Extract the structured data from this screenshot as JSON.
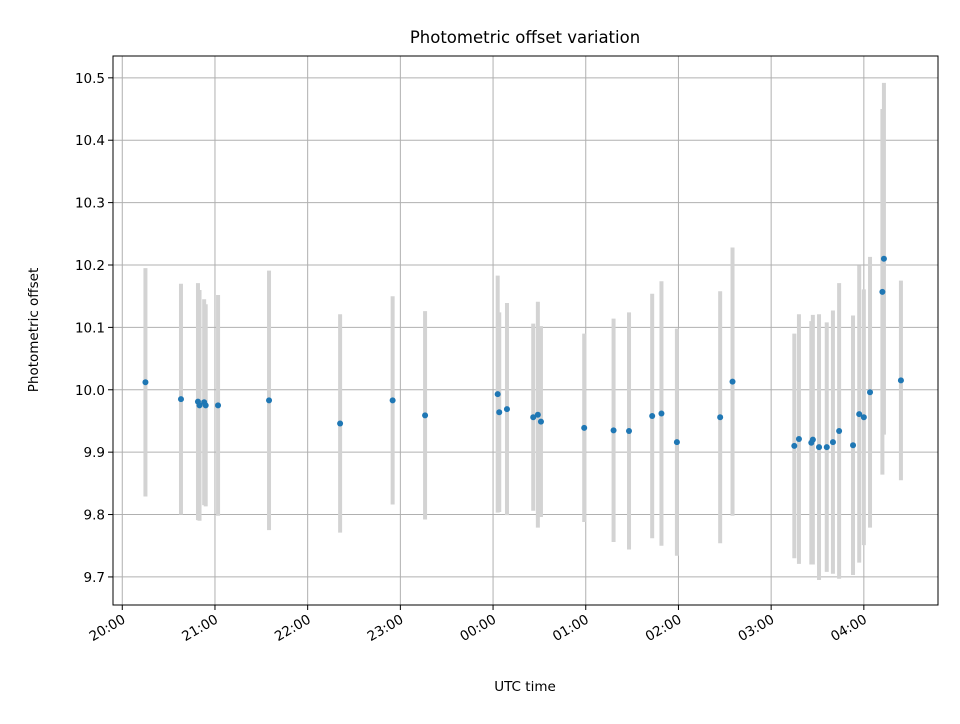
{
  "chart_data": {
    "type": "scatter",
    "title": "Photometric offset variation",
    "xlabel": "UTC time",
    "ylabel": "Photometric offset",
    "x_unit": "time",
    "xlim": [
      "19:54",
      "04:48"
    ],
    "ylim": [
      9.655,
      10.535
    ],
    "grid": true,
    "x_ticks": [
      {
        "time": "20:00",
        "label": "20:00"
      },
      {
        "time": "21:00",
        "label": "21:00"
      },
      {
        "time": "22:00",
        "label": "22:00"
      },
      {
        "time": "23:00",
        "label": "23:00"
      },
      {
        "time": "00:00",
        "label": "00:00"
      },
      {
        "time": "01:00",
        "label": "01:00"
      },
      {
        "time": "02:00",
        "label": "02:00"
      },
      {
        "time": "03:00",
        "label": "03:00"
      },
      {
        "time": "04:00",
        "label": "04:00"
      }
    ],
    "y_ticks": [
      9.7,
      9.8,
      9.9,
      10.0,
      10.1,
      10.2,
      10.3,
      10.4,
      10.5
    ],
    "y_tick_labels": [
      "9.7",
      "9.8",
      "9.9",
      "10.0",
      "10.1",
      "10.2",
      "10.3",
      "10.4",
      "10.5"
    ],
    "colors": {
      "marker": "#1f77b4",
      "errorbar": "#d3d3d3",
      "grid": "#b0b0b0"
    },
    "points": [
      {
        "time": "20:15",
        "y": 10.012,
        "err": 0.183
      },
      {
        "time": "20:38",
        "y": 9.985,
        "err": 0.185
      },
      {
        "time": "20:49",
        "y": 9.981,
        "err": 0.19
      },
      {
        "time": "20:50",
        "y": 9.975,
        "err": 0.185
      },
      {
        "time": "20:53",
        "y": 9.98,
        "err": 0.165
      },
      {
        "time": "20:54",
        "y": 9.975,
        "err": 0.162
      },
      {
        "time": "21:02",
        "y": 9.975,
        "err": 0.177
      },
      {
        "time": "21:35",
        "y": 9.983,
        "err": 0.208
      },
      {
        "time": "22:21",
        "y": 9.946,
        "err": 0.175
      },
      {
        "time": "22:55",
        "y": 9.983,
        "err": 0.167
      },
      {
        "time": "23:16",
        "y": 9.959,
        "err": 0.167
      },
      {
        "time": "00:03",
        "y": 9.993,
        "err": 0.19
      },
      {
        "time": "00:04",
        "y": 9.964,
        "err": 0.16
      },
      {
        "time": "00:09",
        "y": 9.969,
        "err": 0.17
      },
      {
        "time": "00:26",
        "y": 9.956,
        "err": 0.15
      },
      {
        "time": "00:29",
        "y": 9.96,
        "err": 0.181
      },
      {
        "time": "00:31",
        "y": 9.949,
        "err": 0.153
      },
      {
        "time": "00:59",
        "y": 9.939,
        "err": 0.151
      },
      {
        "time": "01:18",
        "y": 9.935,
        "err": 0.179
      },
      {
        "time": "01:28",
        "y": 9.934,
        "err": 0.19
      },
      {
        "time": "01:43",
        "y": 9.958,
        "err": 0.196
      },
      {
        "time": "01:49",
        "y": 9.962,
        "err": 0.212
      },
      {
        "time": "01:59",
        "y": 9.916,
        "err": 0.182
      },
      {
        "time": "02:27",
        "y": 9.956,
        "err": 0.202
      },
      {
        "time": "02:35",
        "y": 10.013,
        "err": 0.215
      },
      {
        "time": "03:15",
        "y": 9.91,
        "err": 0.18
      },
      {
        "time": "03:18",
        "y": 9.921,
        "err": 0.2
      },
      {
        "time": "03:26",
        "y": 9.915,
        "err": 0.195
      },
      {
        "time": "03:27",
        "y": 9.92,
        "err": 0.2
      },
      {
        "time": "03:31",
        "y": 9.908,
        "err": 0.213
      },
      {
        "time": "03:36",
        "y": 9.908,
        "err": 0.2
      },
      {
        "time": "03:40",
        "y": 9.916,
        "err": 0.211
      },
      {
        "time": "03:44",
        "y": 9.934,
        "err": 0.237
      },
      {
        "time": "03:53",
        "y": 9.911,
        "err": 0.208
      },
      {
        "time": "03:57",
        "y": 9.961,
        "err": 0.238
      },
      {
        "time": "04:00",
        "y": 9.956,
        "err": 0.205
      },
      {
        "time": "04:04",
        "y": 9.996,
        "err": 0.217
      },
      {
        "time": "04:12",
        "y": 10.157,
        "err": 0.293
      },
      {
        "time": "04:13",
        "y": 10.21,
        "err": 0.282
      },
      {
        "time": "04:24",
        "y": 10.015,
        "err": 0.16
      }
    ]
  }
}
